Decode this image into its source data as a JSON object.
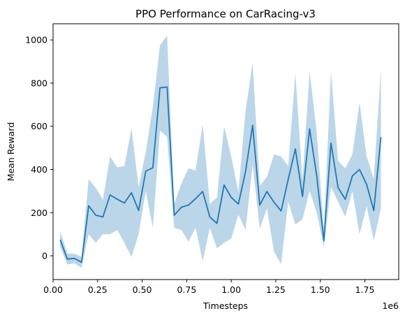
{
  "chart_data": {
    "type": "line",
    "title": "PPO Performance on CarRacing-v3",
    "xlabel": "Timesteps",
    "ylabel": "Mean Reward",
    "x_offset_label": "1e6",
    "xlim": [
      0.0,
      1.94
    ],
    "ylim": [
      -110,
      1075
    ],
    "x_ticks": [
      0.0,
      0.25,
      0.5,
      0.75,
      1.0,
      1.25,
      1.5,
      1.75
    ],
    "x_tick_labels": [
      "0.00",
      "0.25",
      "0.50",
      "0.75",
      "1.00",
      "1.25",
      "1.50",
      "1.75"
    ],
    "y_ticks": [
      0,
      200,
      400,
      600,
      800,
      1000
    ],
    "y_tick_labels": [
      "0",
      "200",
      "400",
      "600",
      "800",
      "1000"
    ],
    "grid": false,
    "line_color": "#1f77b4",
    "band_color": "#1f77b4",
    "band_opacity": 0.3,
    "series": [
      {
        "x": [
          0.04,
          0.08,
          0.12,
          0.16,
          0.2,
          0.24,
          0.28,
          0.32,
          0.36,
          0.4,
          0.44,
          0.48,
          0.52,
          0.56,
          0.6,
          0.64,
          0.68,
          0.72,
          0.76,
          0.8,
          0.84,
          0.88,
          0.92,
          0.96,
          1.0,
          1.04,
          1.08,
          1.12,
          1.16,
          1.2,
          1.24,
          1.28,
          1.32,
          1.36,
          1.4,
          1.44,
          1.48,
          1.52,
          1.56,
          1.6,
          1.64,
          1.68,
          1.72,
          1.76,
          1.8,
          1.84
        ],
        "mean": [
          75,
          -15,
          -12,
          -30,
          232,
          188,
          180,
          282,
          262,
          245,
          292,
          210,
          392,
          408,
          778,
          782,
          188,
          225,
          235,
          265,
          298,
          180,
          150,
          328,
          270,
          240,
          390,
          605,
          235,
          298,
          248,
          208,
          355,
          495,
          275,
          588,
          370,
          70,
          522,
          315,
          262,
          370,
          400,
          330,
          210,
          550
        ],
        "lower": [
          40,
          -40,
          -35,
          -55,
          100,
          60,
          100,
          100,
          120,
          60,
          -5,
          100,
          300,
          130,
          580,
          550,
          130,
          120,
          65,
          130,
          -25,
          130,
          35,
          60,
          80,
          190,
          120,
          420,
          125,
          220,
          20,
          -40,
          250,
          145,
          170,
          300,
          200,
          40,
          320,
          250,
          180,
          300,
          100,
          230,
          70,
          220
        ],
        "upper": [
          115,
          10,
          10,
          -5,
          355,
          315,
          260,
          460,
          410,
          415,
          590,
          320,
          480,
          690,
          975,
          1020,
          240,
          335,
          405,
          395,
          610,
          240,
          270,
          600,
          460,
          295,
          670,
          895,
          325,
          365,
          470,
          460,
          415,
          845,
          350,
          855,
          570,
          120,
          855,
          440,
          405,
          470,
          710,
          460,
          355,
          865
        ]
      }
    ]
  }
}
